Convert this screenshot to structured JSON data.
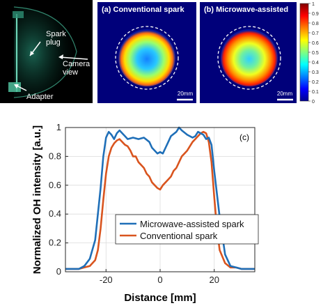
{
  "photo": {
    "labels": [
      "Spark\nplug",
      "Camera\nview",
      "Adapter"
    ]
  },
  "images": [
    {
      "title": "(a) Conventional spark",
      "scale": "20mm"
    },
    {
      "title": "(b) Microwave-assisted",
      "scale": "20mm"
    }
  ],
  "colorbar": {
    "ticks": [
      "1",
      "0.9",
      "0.8",
      "0.7",
      "0.6",
      "0.5",
      "0.4",
      "0.3",
      "0.2",
      "0.1",
      "0"
    ],
    "colormap": [
      "#00008f",
      "#0000ff",
      "#0080ff",
      "#00ffff",
      "#80ff80",
      "#ffff00",
      "#ff8000",
      "#ff0000",
      "#800000"
    ]
  },
  "chart_data": {
    "type": "line",
    "panel_label": "(c)",
    "xlabel": "Distance [mm]",
    "ylabel": "Normalized OH intensity [a.u.]",
    "xlim": [
      -35,
      35
    ],
    "ylim": [
      0,
      1
    ],
    "xticks": [
      -20,
      0,
      20
    ],
    "yticks": [
      0,
      0.2,
      0.4,
      0.6,
      0.8,
      1
    ],
    "grid": true,
    "legend": "center",
    "series": [
      {
        "name": "Microwave-assisted spark",
        "color": "#1f6fb8",
        "x": [
          -35,
          -30,
          -28,
          -26,
          -24,
          -22,
          -21,
          -20,
          -19,
          -18,
          -17,
          -16,
          -15,
          -14,
          -13,
          -12,
          -10,
          -8,
          -6,
          -4,
          -3,
          -2,
          -1,
          0,
          1,
          2,
          3,
          4,
          6,
          7,
          8,
          10,
          12,
          13,
          14,
          15,
          16,
          17,
          18,
          19,
          20,
          22,
          24,
          26,
          28,
          30,
          35
        ],
        "y": [
          0.02,
          0.02,
          0.04,
          0.09,
          0.22,
          0.58,
          0.8,
          0.93,
          0.97,
          0.95,
          0.92,
          0.96,
          0.98,
          0.96,
          0.94,
          0.92,
          0.93,
          0.92,
          0.93,
          0.9,
          0.86,
          0.84,
          0.82,
          0.83,
          0.82,
          0.86,
          0.9,
          0.94,
          0.97,
          1.0,
          0.98,
          0.95,
          0.93,
          0.94,
          0.97,
          0.96,
          0.95,
          0.92,
          0.93,
          0.88,
          0.7,
          0.38,
          0.12,
          0.04,
          0.03,
          0.02,
          0.02
        ]
      },
      {
        "name": "Conventional spark",
        "color": "#d9541e",
        "x": [
          -35,
          -30,
          -28,
          -26,
          -24,
          -23,
          -22,
          -21,
          -20,
          -19,
          -18,
          -17,
          -16,
          -15,
          -14,
          -13,
          -12,
          -11,
          -10,
          -9,
          -8,
          -7,
          -6,
          -5,
          -4,
          -3,
          -2,
          -1,
          0,
          1,
          2,
          3,
          4,
          5,
          6,
          7,
          8,
          9,
          10,
          11,
          12,
          13,
          14,
          15,
          16,
          17,
          18,
          19,
          20,
          21,
          22,
          24,
          26,
          28,
          30,
          35
        ],
        "y": [
          0.02,
          0.02,
          0.03,
          0.04,
          0.08,
          0.15,
          0.3,
          0.5,
          0.68,
          0.8,
          0.86,
          0.89,
          0.91,
          0.92,
          0.9,
          0.88,
          0.87,
          0.84,
          0.8,
          0.8,
          0.76,
          0.74,
          0.72,
          0.68,
          0.66,
          0.62,
          0.6,
          0.58,
          0.57,
          0.6,
          0.62,
          0.64,
          0.66,
          0.7,
          0.72,
          0.76,
          0.8,
          0.82,
          0.84,
          0.87,
          0.9,
          0.92,
          0.94,
          0.96,
          0.97,
          0.96,
          0.9,
          0.76,
          0.52,
          0.3,
          0.15,
          0.06,
          0.03,
          0.03,
          0.02,
          0.02
        ]
      }
    ]
  }
}
